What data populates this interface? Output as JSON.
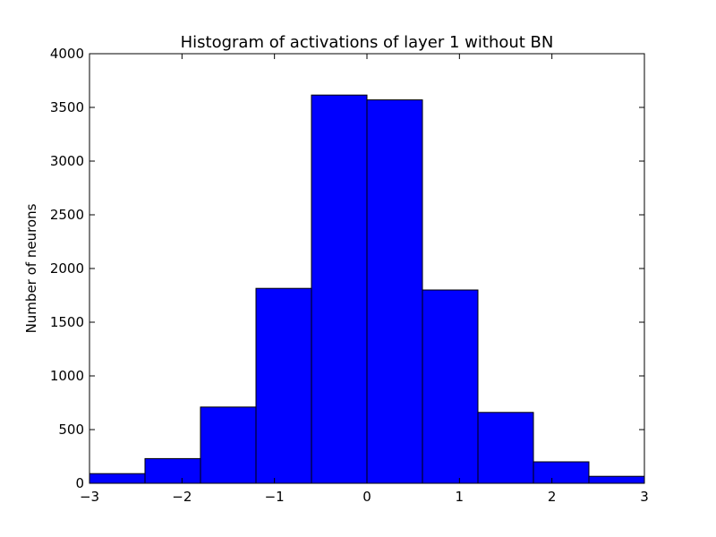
{
  "chart_data": {
    "type": "bar",
    "title": "Histogram of activations of layer 1  without BN",
    "xlabel": "",
    "ylabel": "Number of neurons",
    "xlim": [
      -3,
      3
    ],
    "ylim": [
      0,
      4000
    ],
    "grid": false,
    "bar_color": "#0000ff",
    "edge_color": "#000000",
    "bin_edges": [
      -3.0,
      -2.4,
      -1.8,
      -1.2,
      -0.6,
      0.0,
      0.6,
      1.2,
      1.8,
      2.4,
      3.0
    ],
    "values": [
      90,
      230,
      710,
      1815,
      3615,
      3570,
      1800,
      660,
      200,
      65
    ],
    "xticks": [
      -3,
      -2,
      -1,
      0,
      1,
      2,
      3
    ],
    "xtick_labels": [
      "−3",
      "−2",
      "−1",
      "0",
      "1",
      "2",
      "3"
    ],
    "yticks": [
      0,
      500,
      1000,
      1500,
      2000,
      2500,
      3000,
      3500,
      4000
    ],
    "ytick_labels": [
      "0",
      "500",
      "1000",
      "1500",
      "2000",
      "2500",
      "3000",
      "3500",
      "4000"
    ]
  }
}
